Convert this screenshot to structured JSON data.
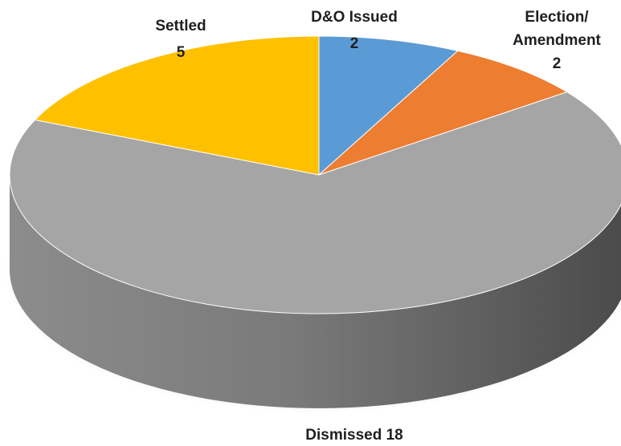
{
  "chart_data": {
    "type": "pie",
    "style": "3d",
    "title": "",
    "slices": [
      {
        "label": "D&O Issued",
        "value": 2,
        "color": "#5B9BD5"
      },
      {
        "label": "Election/ Amendment",
        "value": 2,
        "color": "#ED7D31"
      },
      {
        "label": "Dismissed",
        "value": 18,
        "color": "#A5A5A5"
      },
      {
        "label": "Settled",
        "value": 5,
        "color": "#FFC000"
      }
    ],
    "labels": [
      {
        "lines": [
          "D&O Issued",
          "2"
        ]
      },
      {
        "lines": [
          "Election/",
          "Amendment",
          "2"
        ]
      },
      {
        "lines": [
          "Dismissed 18"
        ]
      },
      {
        "lines": [
          "Settled",
          "5"
        ]
      }
    ],
    "legend": "none"
  }
}
